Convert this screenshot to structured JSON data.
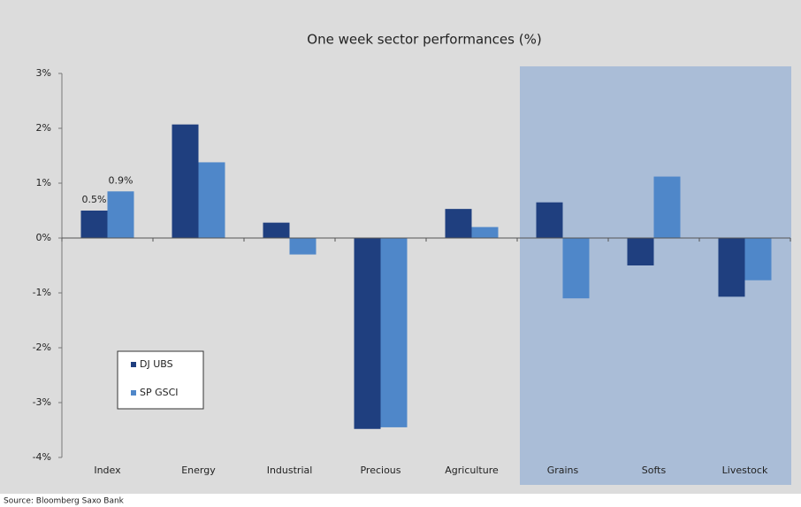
{
  "chart_data": {
    "type": "bar",
    "title": "One week sector performances (%)",
    "source": "Source: Bloomberg Saxo Bank",
    "categories": [
      "Index",
      "Energy",
      "Industrial",
      "Precious",
      "Agriculture",
      "Grains",
      "Softs",
      "Livestock"
    ],
    "series": [
      {
        "name": "DJ UBS",
        "color": "#1f3f7f",
        "values": [
          0.5,
          2.07,
          0.28,
          -3.48,
          0.53,
          0.65,
          -0.5,
          -1.07
        ],
        "value_labels": [
          "0.5%",
          null,
          null,
          null,
          null,
          null,
          null,
          null
        ]
      },
      {
        "name": "SP GSCI",
        "color": "#4f87c9",
        "values": [
          0.85,
          1.38,
          -0.3,
          -3.45,
          0.2,
          -1.1,
          1.12,
          -0.77
        ],
        "value_labels": [
          "0.9%",
          null,
          null,
          null,
          null,
          null,
          null,
          null
        ]
      }
    ],
    "ylim": [
      -4,
      3
    ],
    "yticks": [
      {
        "value": -4,
        "label": "-4%"
      },
      {
        "value": -3,
        "label": "-3%"
      },
      {
        "value": -2,
        "label": "-2%"
      },
      {
        "value": -1,
        "label": "-1%"
      },
      {
        "value": 0,
        "label": "0%"
      },
      {
        "value": 1,
        "label": "1%"
      },
      {
        "value": 2,
        "label": "2%"
      },
      {
        "value": 3,
        "label": "3%"
      }
    ],
    "legend": "lower left"
  }
}
